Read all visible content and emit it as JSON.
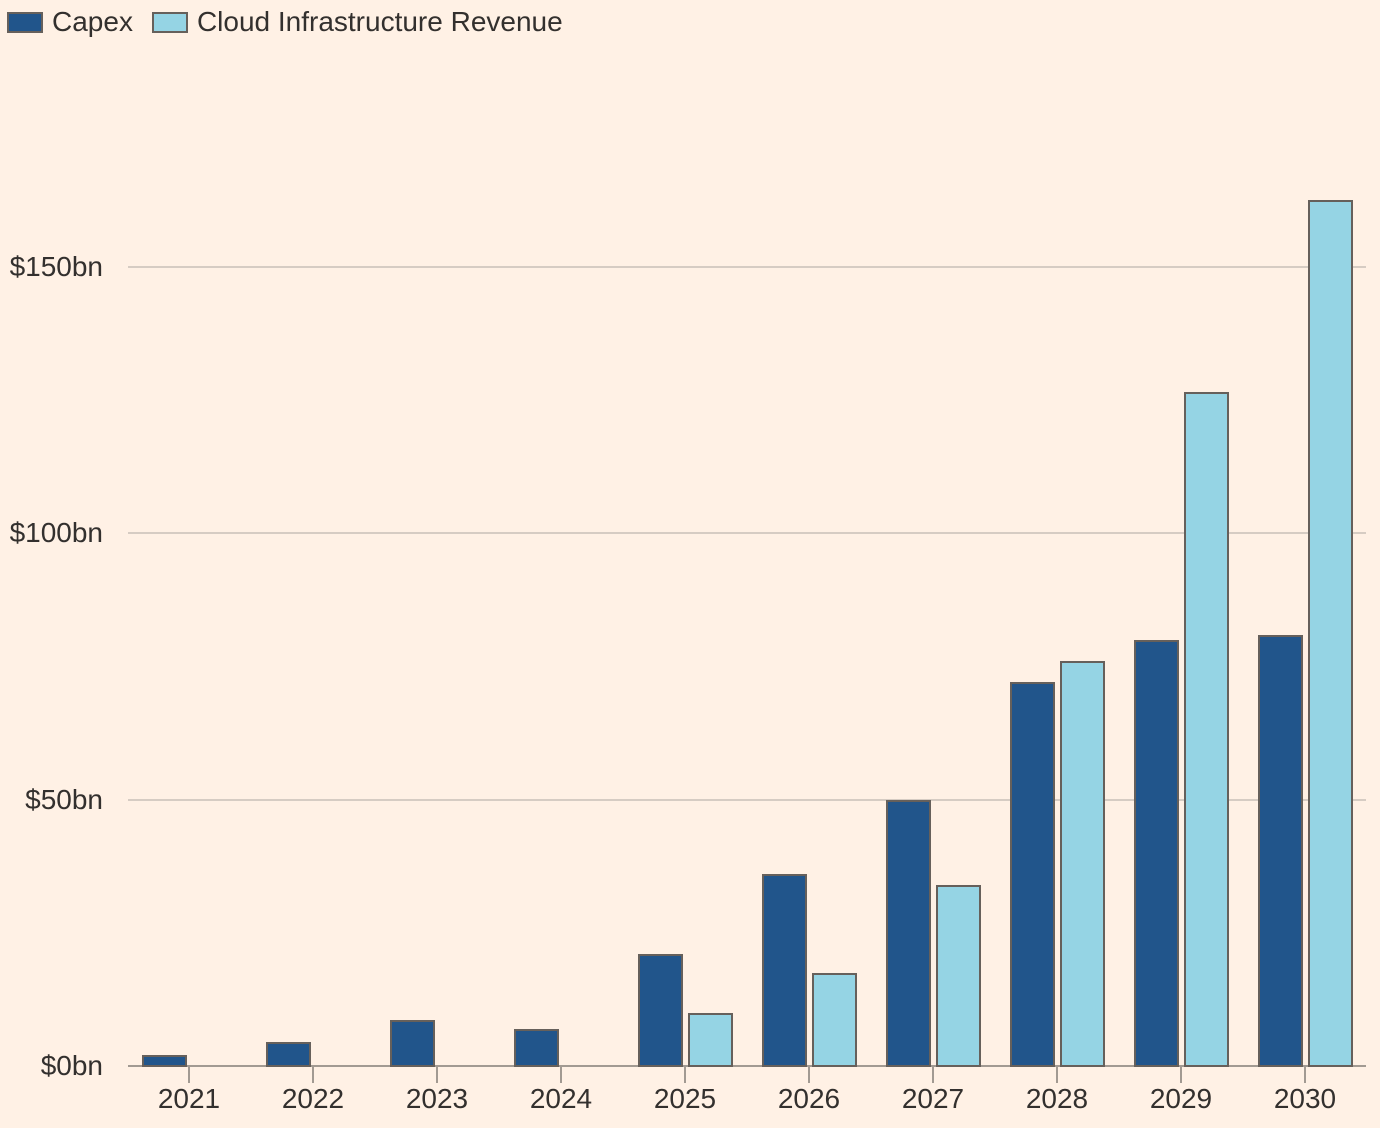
{
  "page": {
    "background": "#FFF1E5",
    "text_color": "#33302E",
    "axis_color": "#A29A92",
    "gridline_color": "#D6CCC3",
    "bar_border_color": "#66605B"
  },
  "legend": {
    "items": [
      {
        "label": "Capex",
        "swatch": "capex-swatch"
      },
      {
        "label": "Cloud Infrastructure Revenue",
        "swatch": "cloud-revenue-swatch"
      }
    ]
  },
  "chart_data": {
    "type": "bar",
    "title": "",
    "xlabel": "",
    "ylabel": "",
    "categories": [
      "2021",
      "2022",
      "2023",
      "2024",
      "2025",
      "2026",
      "2027",
      "2028",
      "2029",
      "2030"
    ],
    "series": [
      {
        "name": "Capex",
        "color": "#21558B",
        "values": [
          2.1,
          4.5,
          8.7,
          7,
          21,
          36,
          50,
          72,
          80,
          81
        ]
      },
      {
        "name": "Cloud Infrastructure Revenue",
        "color": "#95D4E4",
        "values": [
          null,
          null,
          null,
          null,
          10,
          17.5,
          34,
          76,
          126.5,
          162.5
        ]
      }
    ],
    "unit": "$bn",
    "ylim": [
      0,
      165
    ],
    "yticks": [
      {
        "value": 0,
        "label": "$0bn"
      },
      {
        "value": 50,
        "label": "$50bn"
      },
      {
        "value": 100,
        "label": "$100bn"
      },
      {
        "value": 150,
        "label": "$150bn"
      }
    ],
    "grid": true,
    "legend_position": "top-left"
  }
}
